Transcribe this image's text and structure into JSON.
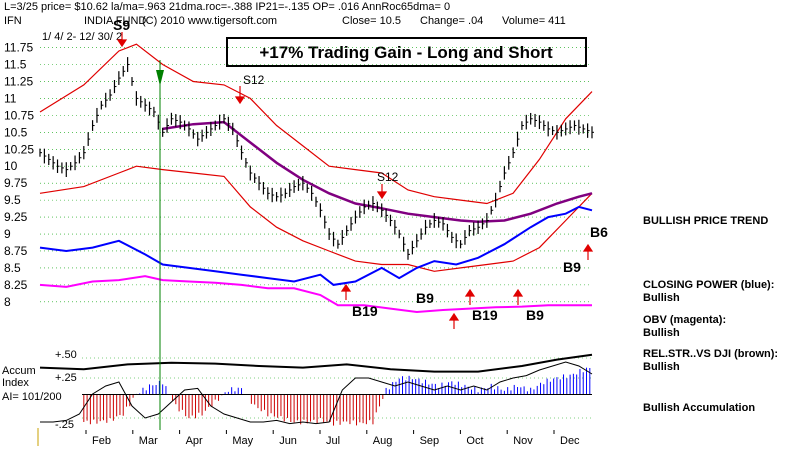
{
  "header": {
    "line1": "L=3/25  price= $10.62  la/ma=.963 21dma.roc=-.388  IP21=-.135  OP= .016  AnnRoc65dma= 0",
    "ticker": "IFN",
    "fund": "INDIA FUND",
    "copyright": "(C) 2010 www.tigersoft.com",
    "close": "Close=  10.5",
    "change": "Change= .04",
    "volume": "Volume= 411",
    "range": "1/ 4/ 2-  12/ 30/ 2"
  },
  "title_box": "+17% Trading Gain - Long and Short",
  "side_labels": {
    "bullish_trend": "BULLISH PRICE TREND",
    "cp_title": "CLOSING POWER (blue):",
    "cp_value": "Bullish",
    "obv_title": "OBV (magenta):",
    "obv_value": "Bullish",
    "rel_title": "REL.STR..VS DJI (brown):",
    "rel_value": "Bullish",
    "accum": "Bullish Accumulation"
  },
  "accum_labels": {
    "title1": "Accum",
    "title2": "Index",
    "ai": "AI= 101/200",
    "p50": "+.50",
    "p25": "+.25",
    "m25": "-.25"
  },
  "signals": {
    "s9": "S9",
    "s12a": "S12",
    "s12b": "S12",
    "b19a": "B19",
    "b9a": "B9",
    "b19b": "B19",
    "b9b": "B9",
    "b9c": "B9",
    "b6": "B6"
  },
  "colors": {
    "price": "#000000",
    "ma": "#800080",
    "bands": "#e00000",
    "closing_power": "#0000ff",
    "obv": "#ff00ff",
    "accum_pos": "#0000ff",
    "accum_neg": "#cc0000",
    "vline": "#008000",
    "grid": "#00a000"
  },
  "chart_data": {
    "type": "line",
    "ylim": [
      7.85,
      11.95
    ],
    "y_ticks": [
      "11.75",
      "11.5",
      "11.25",
      "11",
      "10.75",
      "10.5",
      "10.25",
      "10",
      "9.75",
      "9.5",
      "9.25",
      "9",
      "8.75",
      "8.5",
      "8.25",
      "8"
    ],
    "months": [
      "Feb",
      "Mar",
      "Apr",
      "May",
      "Jun",
      "Jul",
      "Aug",
      "Sep",
      "Oct",
      "Nov",
      "Dec"
    ],
    "price_series": {
      "name": "",
      "x": [
        0,
        4,
        8,
        12,
        16,
        20,
        24,
        28,
        32,
        36,
        40,
        44,
        48,
        52,
        56,
        60,
        64,
        68,
        72,
        76,
        80,
        84,
        88,
        92,
        96,
        100,
        104,
        108,
        112,
        116,
        120,
        124,
        128,
        132,
        136,
        140,
        144,
        148,
        152,
        156,
        160,
        164,
        168,
        172,
        176,
        180,
        184,
        188,
        192,
        196,
        200,
        204,
        208,
        212,
        216,
        220,
        224,
        228,
        232,
        236,
        240,
        244,
        248,
        252
      ],
      "y": [
        10.2,
        10.1,
        10.0,
        9.95,
        10.05,
        10.2,
        10.6,
        10.9,
        11.05,
        11.3,
        11.5,
        11.0,
        10.9,
        10.8,
        10.5,
        10.7,
        10.65,
        10.55,
        10.4,
        10.5,
        10.6,
        10.7,
        10.55,
        10.2,
        9.9,
        9.75,
        9.6,
        9.55,
        9.6,
        9.7,
        9.75,
        9.6,
        9.35,
        9.0,
        8.85,
        9.05,
        9.25,
        9.4,
        9.45,
        9.35,
        9.2,
        9.0,
        8.7,
        8.9,
        9.1,
        9.2,
        9.15,
        8.95,
        8.85,
        9.05,
        9.1,
        9.2,
        9.5,
        9.9,
        10.2,
        10.6,
        10.7,
        10.65,
        10.55,
        10.5,
        10.55,
        10.6,
        10.55,
        10.5
      ]
    },
    "ma_series": {
      "name": "",
      "x": [
        56,
        70,
        84,
        96,
        108,
        120,
        132,
        144,
        156,
        168,
        180,
        192,
        200,
        212,
        224,
        236,
        246,
        252
      ],
      "y": [
        10.55,
        10.62,
        10.65,
        10.35,
        10.05,
        9.8,
        9.6,
        9.45,
        9.38,
        9.3,
        9.25,
        9.2,
        9.18,
        9.2,
        9.3,
        9.45,
        9.55,
        9.6
      ]
    },
    "upper_band": {
      "name": "",
      "x": [
        0,
        20,
        36,
        44,
        56,
        70,
        84,
        96,
        108,
        120,
        132,
        144,
        156,
        168,
        180,
        192,
        204,
        216,
        228,
        240,
        252
      ],
      "y": [
        10.8,
        11.2,
        11.7,
        11.8,
        11.5,
        11.25,
        11.2,
        11.0,
        10.6,
        10.3,
        10.0,
        9.95,
        9.9,
        9.65,
        9.55,
        9.5,
        9.45,
        9.6,
        10.1,
        10.7,
        11.1
      ]
    },
    "lower_band": {
      "name": "",
      "x": [
        0,
        20,
        36,
        44,
        56,
        70,
        84,
        96,
        108,
        120,
        132,
        144,
        156,
        168,
        180,
        192,
        204,
        216,
        228,
        240,
        252
      ],
      "y": [
        9.6,
        9.7,
        9.9,
        10.0,
        9.95,
        9.9,
        9.85,
        9.4,
        9.1,
        8.9,
        8.75,
        8.6,
        8.55,
        8.55,
        8.45,
        8.5,
        8.55,
        8.6,
        8.8,
        9.2,
        9.6
      ]
    },
    "closing_power": {
      "name": "",
      "x": [
        0,
        12,
        24,
        36,
        48,
        56,
        68,
        80,
        92,
        104,
        116,
        128,
        134,
        144,
        156,
        164,
        172,
        180,
        190,
        200,
        212,
        224,
        232,
        240,
        246,
        252
      ],
      "y": [
        8.8,
        8.75,
        8.8,
        8.9,
        8.7,
        8.55,
        8.5,
        8.45,
        8.4,
        8.35,
        8.3,
        8.4,
        8.25,
        8.3,
        8.5,
        8.35,
        8.5,
        8.6,
        8.55,
        8.65,
        8.85,
        9.1,
        9.25,
        9.3,
        9.4,
        9.35
      ]
    },
    "obv": {
      "name": "",
      "x": [
        0,
        12,
        24,
        36,
        48,
        56,
        68,
        80,
        92,
        104,
        116,
        128,
        136,
        148,
        160,
        172,
        184,
        196,
        208,
        220,
        232,
        244,
        252
      ],
      "y": [
        8.25,
        8.22,
        8.3,
        8.32,
        8.38,
        8.32,
        8.3,
        8.28,
        8.25,
        8.2,
        8.2,
        8.1,
        7.95,
        7.95,
        7.9,
        7.85,
        7.88,
        7.9,
        7.92,
        7.93,
        7.95,
        7.95,
        7.95
      ]
    },
    "rel_strength": {
      "name": "",
      "x": [
        0,
        20,
        40,
        60,
        80,
        100,
        120,
        140,
        160,
        180,
        200,
        220,
        236,
        252
      ],
      "y": [
        0.38,
        0.36,
        0.42,
        0.44,
        0.43,
        0.4,
        0.38,
        0.42,
        0.36,
        0.33,
        0.33,
        0.4,
        0.48,
        0.54
      ],
      "ylim": [
        -0.35,
        0.6
      ]
    },
    "accum_index": {
      "name": "",
      "x": [
        0,
        6,
        12,
        18,
        24,
        30,
        36,
        42,
        48,
        54,
        60,
        66,
        72,
        78,
        84,
        90,
        96,
        102,
        108,
        114,
        120,
        126,
        132,
        138,
        144,
        150,
        156,
        162,
        168,
        174,
        180,
        186,
        192,
        198,
        204,
        210,
        216,
        222,
        228,
        234,
        240,
        246,
        252
      ],
      "y": [
        -0.3,
        -0.3,
        -0.28,
        -0.2,
        0.05,
        0.15,
        0.2,
        -0.1,
        -0.25,
        -0.2,
        -0.05,
        0.1,
        0.12,
        -0.1,
        -0.2,
        -0.25,
        -0.3,
        -0.3,
        -0.28,
        -0.32,
        -0.3,
        -0.32,
        -0.3,
        0.1,
        0.25,
        0.25,
        0.2,
        0.15,
        0.2,
        0.15,
        0.1,
        0.15,
        0.1,
        0.15,
        0.1,
        0.2,
        0.25,
        0.28,
        0.35,
        0.4,
        0.45,
        0.4,
        0.3
      ],
      "ylim": [
        -0.35,
        0.6
      ]
    }
  }
}
